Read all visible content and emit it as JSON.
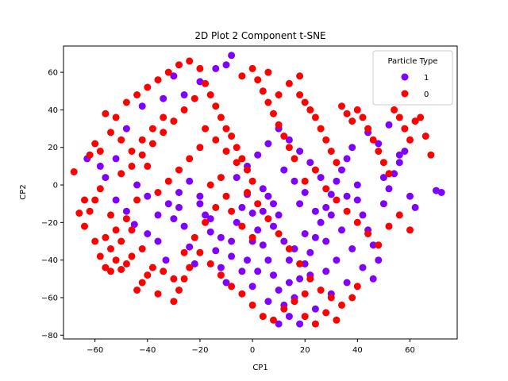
{
  "chart_data": {
    "type": "scatter",
    "title": "2D Plot 2 Component t-SNE",
    "xlabel": "CP1",
    "ylabel": "CP2",
    "xlim": [
      -72,
      78
    ],
    "ylim": [
      -82,
      74
    ],
    "xticks": [
      -60,
      -40,
      -20,
      0,
      20,
      40,
      60
    ],
    "yticks": [
      -80,
      -60,
      -40,
      -20,
      0,
      20,
      40,
      60
    ],
    "xtick_labels": [
      "−60",
      "−40",
      "−20",
      "0",
      "20",
      "40",
      "60"
    ],
    "ytick_labels": [
      "−80",
      "−60",
      "−40",
      "−20",
      "0",
      "20",
      "40",
      "60"
    ],
    "grid": false,
    "legend": {
      "title": "Particle Type",
      "position": "top-right"
    },
    "series": [
      {
        "name": "1",
        "color": "#8000ff",
        "points": [
          [
            -63,
            14
          ],
          [
            -58,
            10
          ],
          [
            -52,
            -8
          ],
          [
            -48,
            -14
          ],
          [
            -45,
            -21
          ],
          [
            -40,
            -26
          ],
          [
            -36,
            -30
          ],
          [
            -33,
            -40
          ],
          [
            -30,
            -18
          ],
          [
            -28,
            -12
          ],
          [
            -26,
            -22
          ],
          [
            -24,
            -33
          ],
          [
            -22,
            -42
          ],
          [
            -20,
            -10
          ],
          [
            -18,
            -16
          ],
          [
            -16,
            -25
          ],
          [
            -14,
            -35
          ],
          [
            -12,
            -44
          ],
          [
            -10,
            -52
          ],
          [
            -8,
            -30
          ],
          [
            -6,
            -20
          ],
          [
            -4,
            -12
          ],
          [
            -2,
            -5
          ],
          [
            0,
            -15
          ],
          [
            2,
            -24
          ],
          [
            4,
            -32
          ],
          [
            6,
            -40
          ],
          [
            8,
            -48
          ],
          [
            10,
            -56
          ],
          [
            12,
            -64
          ],
          [
            14,
            -70
          ],
          [
            16,
            -60
          ],
          [
            18,
            -50
          ],
          [
            20,
            -42
          ],
          [
            22,
            -36
          ],
          [
            24,
            -28
          ],
          [
            26,
            -20
          ],
          [
            28,
            -12
          ],
          [
            30,
            -5
          ],
          [
            32,
            2
          ],
          [
            34,
            8
          ],
          [
            36,
            14
          ],
          [
            38,
            20
          ],
          [
            40,
            -8
          ],
          [
            42,
            -16
          ],
          [
            44,
            -24
          ],
          [
            46,
            -32
          ],
          [
            48,
            -40
          ],
          [
            50,
            -10
          ],
          [
            52,
            -2
          ],
          [
            54,
            6
          ],
          [
            56,
            12
          ],
          [
            58,
            18
          ],
          [
            60,
            -6
          ],
          [
            62,
            -12
          ],
          [
            70,
            -3
          ],
          [
            72,
            -4
          ],
          [
            -10,
            64
          ],
          [
            -8,
            69
          ],
          [
            -14,
            62
          ],
          [
            -20,
            55
          ],
          [
            -26,
            48
          ],
          [
            10,
            30
          ],
          [
            14,
            24
          ],
          [
            18,
            18
          ],
          [
            22,
            12
          ],
          [
            6,
            22
          ],
          [
            2,
            16
          ],
          [
            -2,
            10
          ],
          [
            -6,
            4
          ],
          [
            12,
            8
          ],
          [
            16,
            2
          ],
          [
            20,
            -4
          ],
          [
            8,
            -10
          ],
          [
            4,
            -2
          ],
          [
            26,
            4
          ],
          [
            30,
            -16
          ],
          [
            34,
            -24
          ],
          [
            38,
            -34
          ],
          [
            42,
            -44
          ],
          [
            46,
            -50
          ],
          [
            36,
            -52
          ],
          [
            30,
            -58
          ],
          [
            24,
            -66
          ],
          [
            18,
            -74
          ],
          [
            10,
            -74
          ],
          [
            6,
            -62
          ],
          [
            0,
            -54
          ],
          [
            -4,
            -46
          ],
          [
            -8,
            -38
          ],
          [
            -12,
            -28
          ],
          [
            -16,
            -18
          ],
          [
            -20,
            -6
          ],
          [
            -24,
            2
          ],
          [
            -28,
            -4
          ],
          [
            -32,
            -10
          ],
          [
            -36,
            -16
          ],
          [
            -40,
            -6
          ],
          [
            -44,
            0
          ],
          [
            -30,
            58
          ],
          [
            -34,
            46
          ],
          [
            -42,
            42
          ],
          [
            -48,
            30
          ],
          [
            -52,
            14
          ],
          [
            -56,
            4
          ],
          [
            44,
            28
          ],
          [
            48,
            22
          ],
          [
            52,
            32
          ],
          [
            56,
            16
          ],
          [
            50,
            4
          ],
          [
            40,
            0
          ],
          [
            36,
            -6
          ],
          [
            28,
            -30
          ],
          [
            22,
            -48
          ],
          [
            14,
            -40
          ],
          [
            12,
            -30
          ],
          [
            8,
            -22
          ],
          [
            4,
            -14
          ],
          [
            0,
            -30
          ],
          [
            -2,
            -40
          ],
          [
            18,
            -10
          ],
          [
            24,
            -14
          ],
          [
            32,
            -40
          ],
          [
            28,
            -46
          ],
          [
            16,
            -34
          ],
          [
            20,
            -26
          ],
          [
            10,
            -16
          ],
          [
            6,
            -6
          ],
          [
            2,
            -46
          ],
          [
            14,
            -52
          ]
        ]
      },
      {
        "name": "0",
        "color": "#ff0000",
        "points": [
          [
            -68,
            7
          ],
          [
            -66,
            -15
          ],
          [
            -64,
            -22
          ],
          [
            -62,
            -14
          ],
          [
            -60,
            -8
          ],
          [
            -62,
            16
          ],
          [
            -60,
            22
          ],
          [
            -58,
            18
          ],
          [
            -56,
            -28
          ],
          [
            -54,
            -34
          ],
          [
            -52,
            -40
          ],
          [
            -50,
            -45
          ],
          [
            -48,
            -42
          ],
          [
            -46,
            -38
          ],
          [
            -56,
            -44
          ],
          [
            -54,
            -46
          ],
          [
            -44,
            -56
          ],
          [
            -42,
            -52
          ],
          [
            -40,
            -48
          ],
          [
            -38,
            -44
          ],
          [
            -36,
            -58
          ],
          [
            -34,
            -46
          ],
          [
            -30,
            -62
          ],
          [
            -28,
            -56
          ],
          [
            -26,
            -50
          ],
          [
            -24,
            -44
          ],
          [
            -56,
            38
          ],
          [
            -52,
            36
          ],
          [
            -48,
            44
          ],
          [
            -44,
            48
          ],
          [
            -40,
            52
          ],
          [
            -36,
            56
          ],
          [
            -32,
            60
          ],
          [
            -28,
            64
          ],
          [
            -24,
            66
          ],
          [
            -20,
            62
          ],
          [
            -18,
            54
          ],
          [
            -16,
            48
          ],
          [
            -14,
            42
          ],
          [
            -12,
            36
          ],
          [
            -10,
            30
          ],
          [
            -8,
            26
          ],
          [
            -6,
            20
          ],
          [
            -4,
            14
          ],
          [
            -2,
            8
          ],
          [
            0,
            2
          ],
          [
            2,
            56
          ],
          [
            4,
            50
          ],
          [
            6,
            44
          ],
          [
            8,
            38
          ],
          [
            10,
            32
          ],
          [
            12,
            26
          ],
          [
            14,
            20
          ],
          [
            16,
            14
          ],
          [
            18,
            48
          ],
          [
            20,
            44
          ],
          [
            22,
            40
          ],
          [
            24,
            36
          ],
          [
            26,
            30
          ],
          [
            28,
            24
          ],
          [
            30,
            18
          ],
          [
            32,
            12
          ],
          [
            34,
            42
          ],
          [
            36,
            38
          ],
          [
            38,
            34
          ],
          [
            40,
            40
          ],
          [
            42,
            36
          ],
          [
            44,
            30
          ],
          [
            46,
            24
          ],
          [
            48,
            18
          ],
          [
            50,
            12
          ],
          [
            52,
            6
          ],
          [
            54,
            40
          ],
          [
            56,
            36
          ],
          [
            58,
            30
          ],
          [
            60,
            24
          ],
          [
            62,
            34
          ],
          [
            64,
            36
          ],
          [
            66,
            26
          ],
          [
            68,
            16
          ],
          [
            -64,
            -8
          ],
          [
            -60,
            -30
          ],
          [
            -58,
            -2
          ],
          [
            -50,
            6
          ],
          [
            -46,
            10
          ],
          [
            -42,
            16
          ],
          [
            -38,
            22
          ],
          [
            -34,
            28
          ],
          [
            -30,
            34
          ],
          [
            -26,
            40
          ],
          [
            -22,
            46
          ],
          [
            -18,
            30
          ],
          [
            -14,
            24
          ],
          [
            -10,
            18
          ],
          [
            -6,
            12
          ],
          [
            -2,
            -4
          ],
          [
            2,
            -10
          ],
          [
            6,
            -18
          ],
          [
            10,
            -26
          ],
          [
            14,
            -34
          ],
          [
            18,
            -42
          ],
          [
            22,
            -50
          ],
          [
            26,
            -56
          ],
          [
            30,
            -60
          ],
          [
            34,
            -64
          ],
          [
            38,
            -60
          ],
          [
            40,
            -54
          ],
          [
            20,
            -58
          ],
          [
            16,
            -62
          ],
          [
            12,
            -66
          ],
          [
            8,
            -72
          ],
          [
            4,
            -70
          ],
          [
            0,
            -64
          ],
          [
            -4,
            -58
          ],
          [
            -30,
            -50
          ],
          [
            -26,
            -36
          ],
          [
            -22,
            -28
          ],
          [
            -18,
            -20
          ],
          [
            -14,
            -12
          ],
          [
            -10,
            -6
          ],
          [
            -40,
            10
          ],
          [
            -44,
            -8
          ],
          [
            -48,
            -18
          ],
          [
            -52,
            -24
          ],
          [
            -36,
            -4
          ],
          [
            -32,
            2
          ],
          [
            -28,
            8
          ],
          [
            -24,
            14
          ],
          [
            -20,
            20
          ],
          [
            -16,
            0
          ],
          [
            -12,
            4
          ],
          [
            -8,
            -14
          ],
          [
            -4,
            -22
          ],
          [
            0,
            -28
          ],
          [
            20,
            2
          ],
          [
            24,
            8
          ],
          [
            28,
            -2
          ],
          [
            32,
            -8
          ],
          [
            36,
            -14
          ],
          [
            40,
            -20
          ],
          [
            44,
            -26
          ],
          [
            48,
            -32
          ],
          [
            52,
            -22
          ],
          [
            56,
            -16
          ],
          [
            60,
            -24
          ],
          [
            -54,
            -16
          ],
          [
            -58,
            -38
          ],
          [
            -50,
            -30
          ],
          [
            -46,
            -24
          ],
          [
            -42,
            -34
          ],
          [
            -20,
            -36
          ],
          [
            -16,
            -42
          ],
          [
            -12,
            -48
          ],
          [
            -8,
            -54
          ],
          [
            10,
            48
          ],
          [
            14,
            54
          ],
          [
            18,
            58
          ],
          [
            6,
            60
          ],
          [
            0,
            62
          ],
          [
            -4,
            58
          ],
          [
            20,
            -70
          ],
          [
            24,
            -74
          ],
          [
            28,
            -68
          ],
          [
            32,
            -72
          ],
          [
            -34,
            36
          ],
          [
            -38,
            30
          ],
          [
            -42,
            24
          ],
          [
            -46,
            18
          ],
          [
            -50,
            24
          ],
          [
            -54,
            28
          ]
        ]
      }
    ]
  }
}
